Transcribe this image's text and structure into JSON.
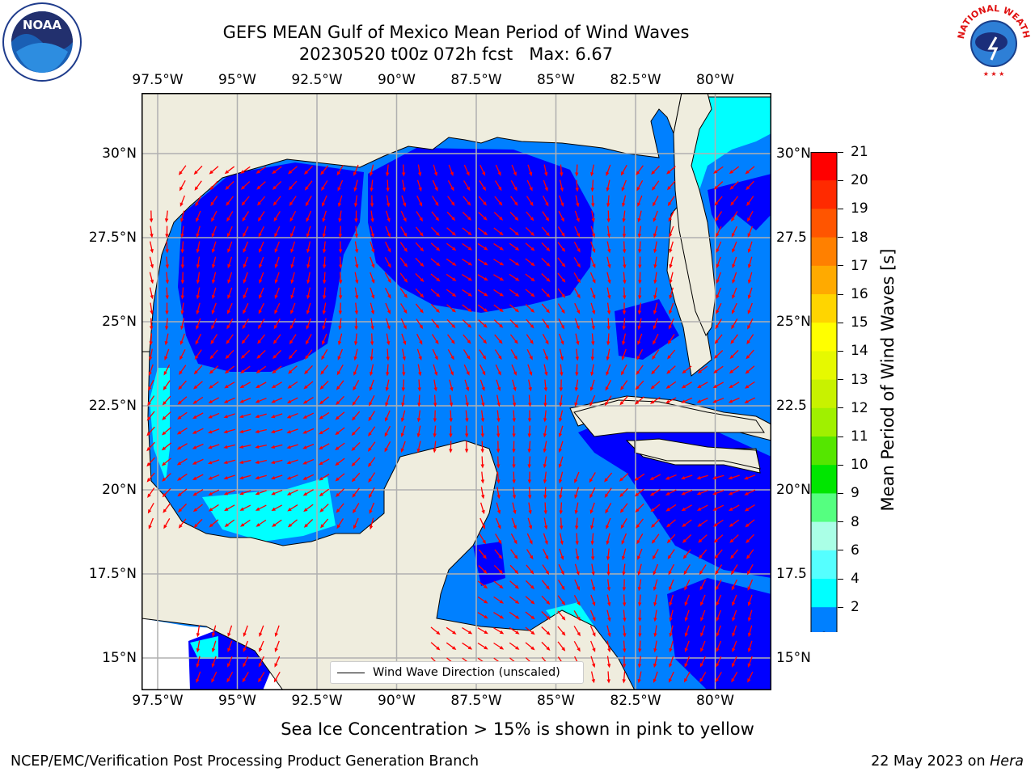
{
  "title": {
    "line1": "GEFS MEAN Gulf of Mexico Mean Period of Wind Waves",
    "line2": "20230520 t00z 072h fcst   Max: 6.67"
  },
  "map": {
    "lon_ticks": [
      "97.5°W",
      "95°W",
      "92.5°W",
      "90°W",
      "87.5°W",
      "85°W",
      "82.5°W",
      "80°W"
    ],
    "lat_ticks_left": [
      "30°N",
      "27.5°N",
      "25°N",
      "22.5°N",
      "20°N",
      "17.5°N",
      "15°N"
    ],
    "lat_ticks_right": [
      "30°N",
      "27.5",
      "25°N",
      "22.5",
      "20°N",
      "17.5",
      "15°N"
    ],
    "legend_label": "Wind Wave Direction (unscaled)",
    "colors": {
      "land": "#efedde",
      "coast": "#000000",
      "grid": "#b0b0b0",
      "arrow": "#ff0000"
    }
  },
  "colorbar": {
    "label": "Mean Period of Wind Waves [s]",
    "ticks": [
      "21",
      "20",
      "19",
      "18",
      "17",
      "16",
      "15",
      "14",
      "13",
      "12",
      "11",
      "10",
      "9",
      "8",
      "6",
      "4",
      "2"
    ],
    "colors_top_to_bottom": [
      "#ff0000",
      "#ff2a00",
      "#ff5500",
      "#ff8000",
      "#ffaa00",
      "#ffd500",
      "#ffff00",
      "#e6f900",
      "#c8f200",
      "#a0f000",
      "#55e600",
      "#00e600",
      "#55ff80",
      "#aaffe6",
      "#55ffff",
      "#00ffff",
      "#0080ff",
      "#0000ff"
    ]
  },
  "note": "Sea Ice Concentration > 15% is shown in pink to yellow",
  "footer": {
    "left": "NCEP/EMC/Verification Post Processing Product Generation Branch",
    "right_prefix": "22 May 2023 on ",
    "right_machine": "Hera"
  },
  "logos": {
    "left": "NOAA",
    "right": "NATIONAL WEATHER SERVICE"
  }
}
